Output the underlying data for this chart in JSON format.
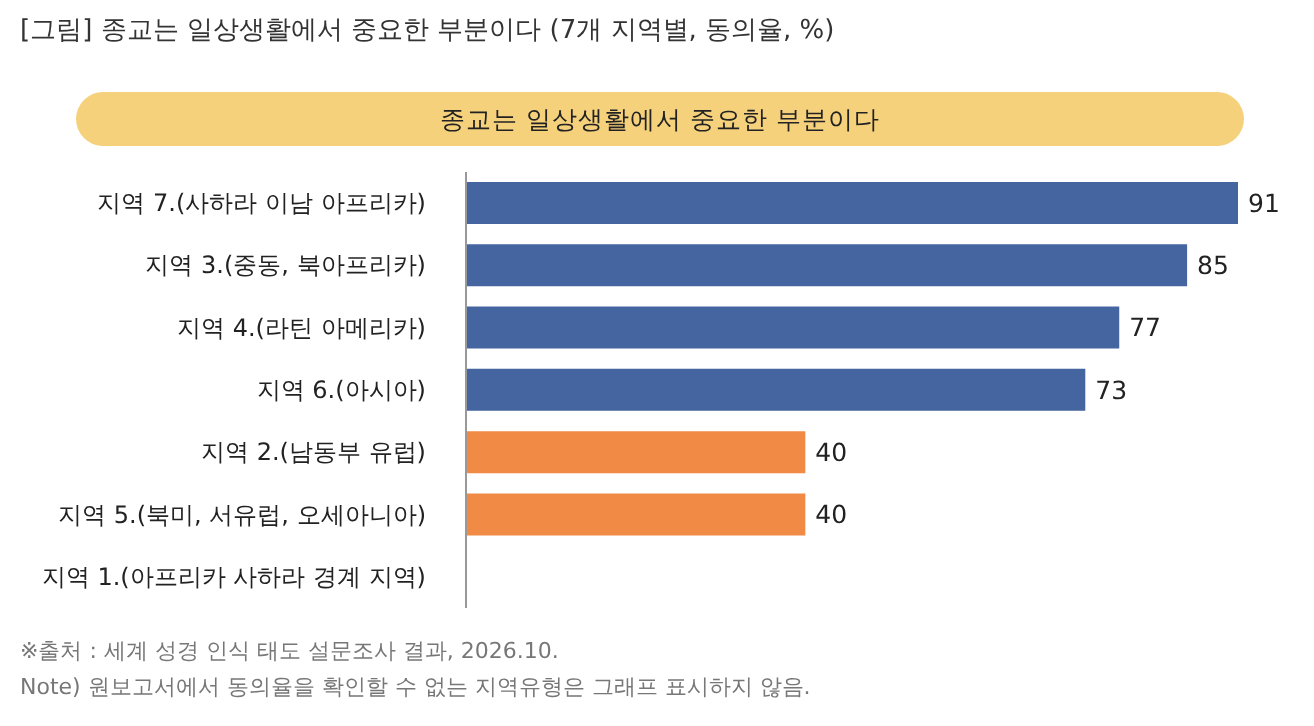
{
  "chart_data": {
    "type": "bar",
    "orientation": "horizontal",
    "title": "[그림] 종교는 일상생활에서 중요한 부분이다 (7개 지역별, 동의율, %)",
    "subtitle": "종교는 일상생활에서 중요한 부분이다",
    "categories": [
      "지역 7.(사하라 이남 아프리카)",
      "지역 3.(중동, 북아프리카)",
      "지역 4.(라틴 아메리카)",
      "지역 6.(아시아)",
      "지역 2.(남동부 유럽)",
      "지역 5.(북미, 서유럽, 오세아니아)",
      "지역 1.(아프리카 사하라 경계 지역)"
    ],
    "values": [
      91,
      85,
      77,
      73,
      40,
      40,
      null
    ],
    "colors": [
      "#4465a0",
      "#4465a0",
      "#4465a0",
      "#4465a0",
      "#f08a45",
      "#f08a45",
      "#f08a45"
    ],
    "data_labels": true,
    "grid": false,
    "annotations": [
      "※출처 : 세계 성경 인식 태도 설문조사 결과, 2026.10.",
      "Note) 원보고서에서 동의율을 확인할 수 없는 지역유형은 그래프 표시하지 않음."
    ]
  }
}
